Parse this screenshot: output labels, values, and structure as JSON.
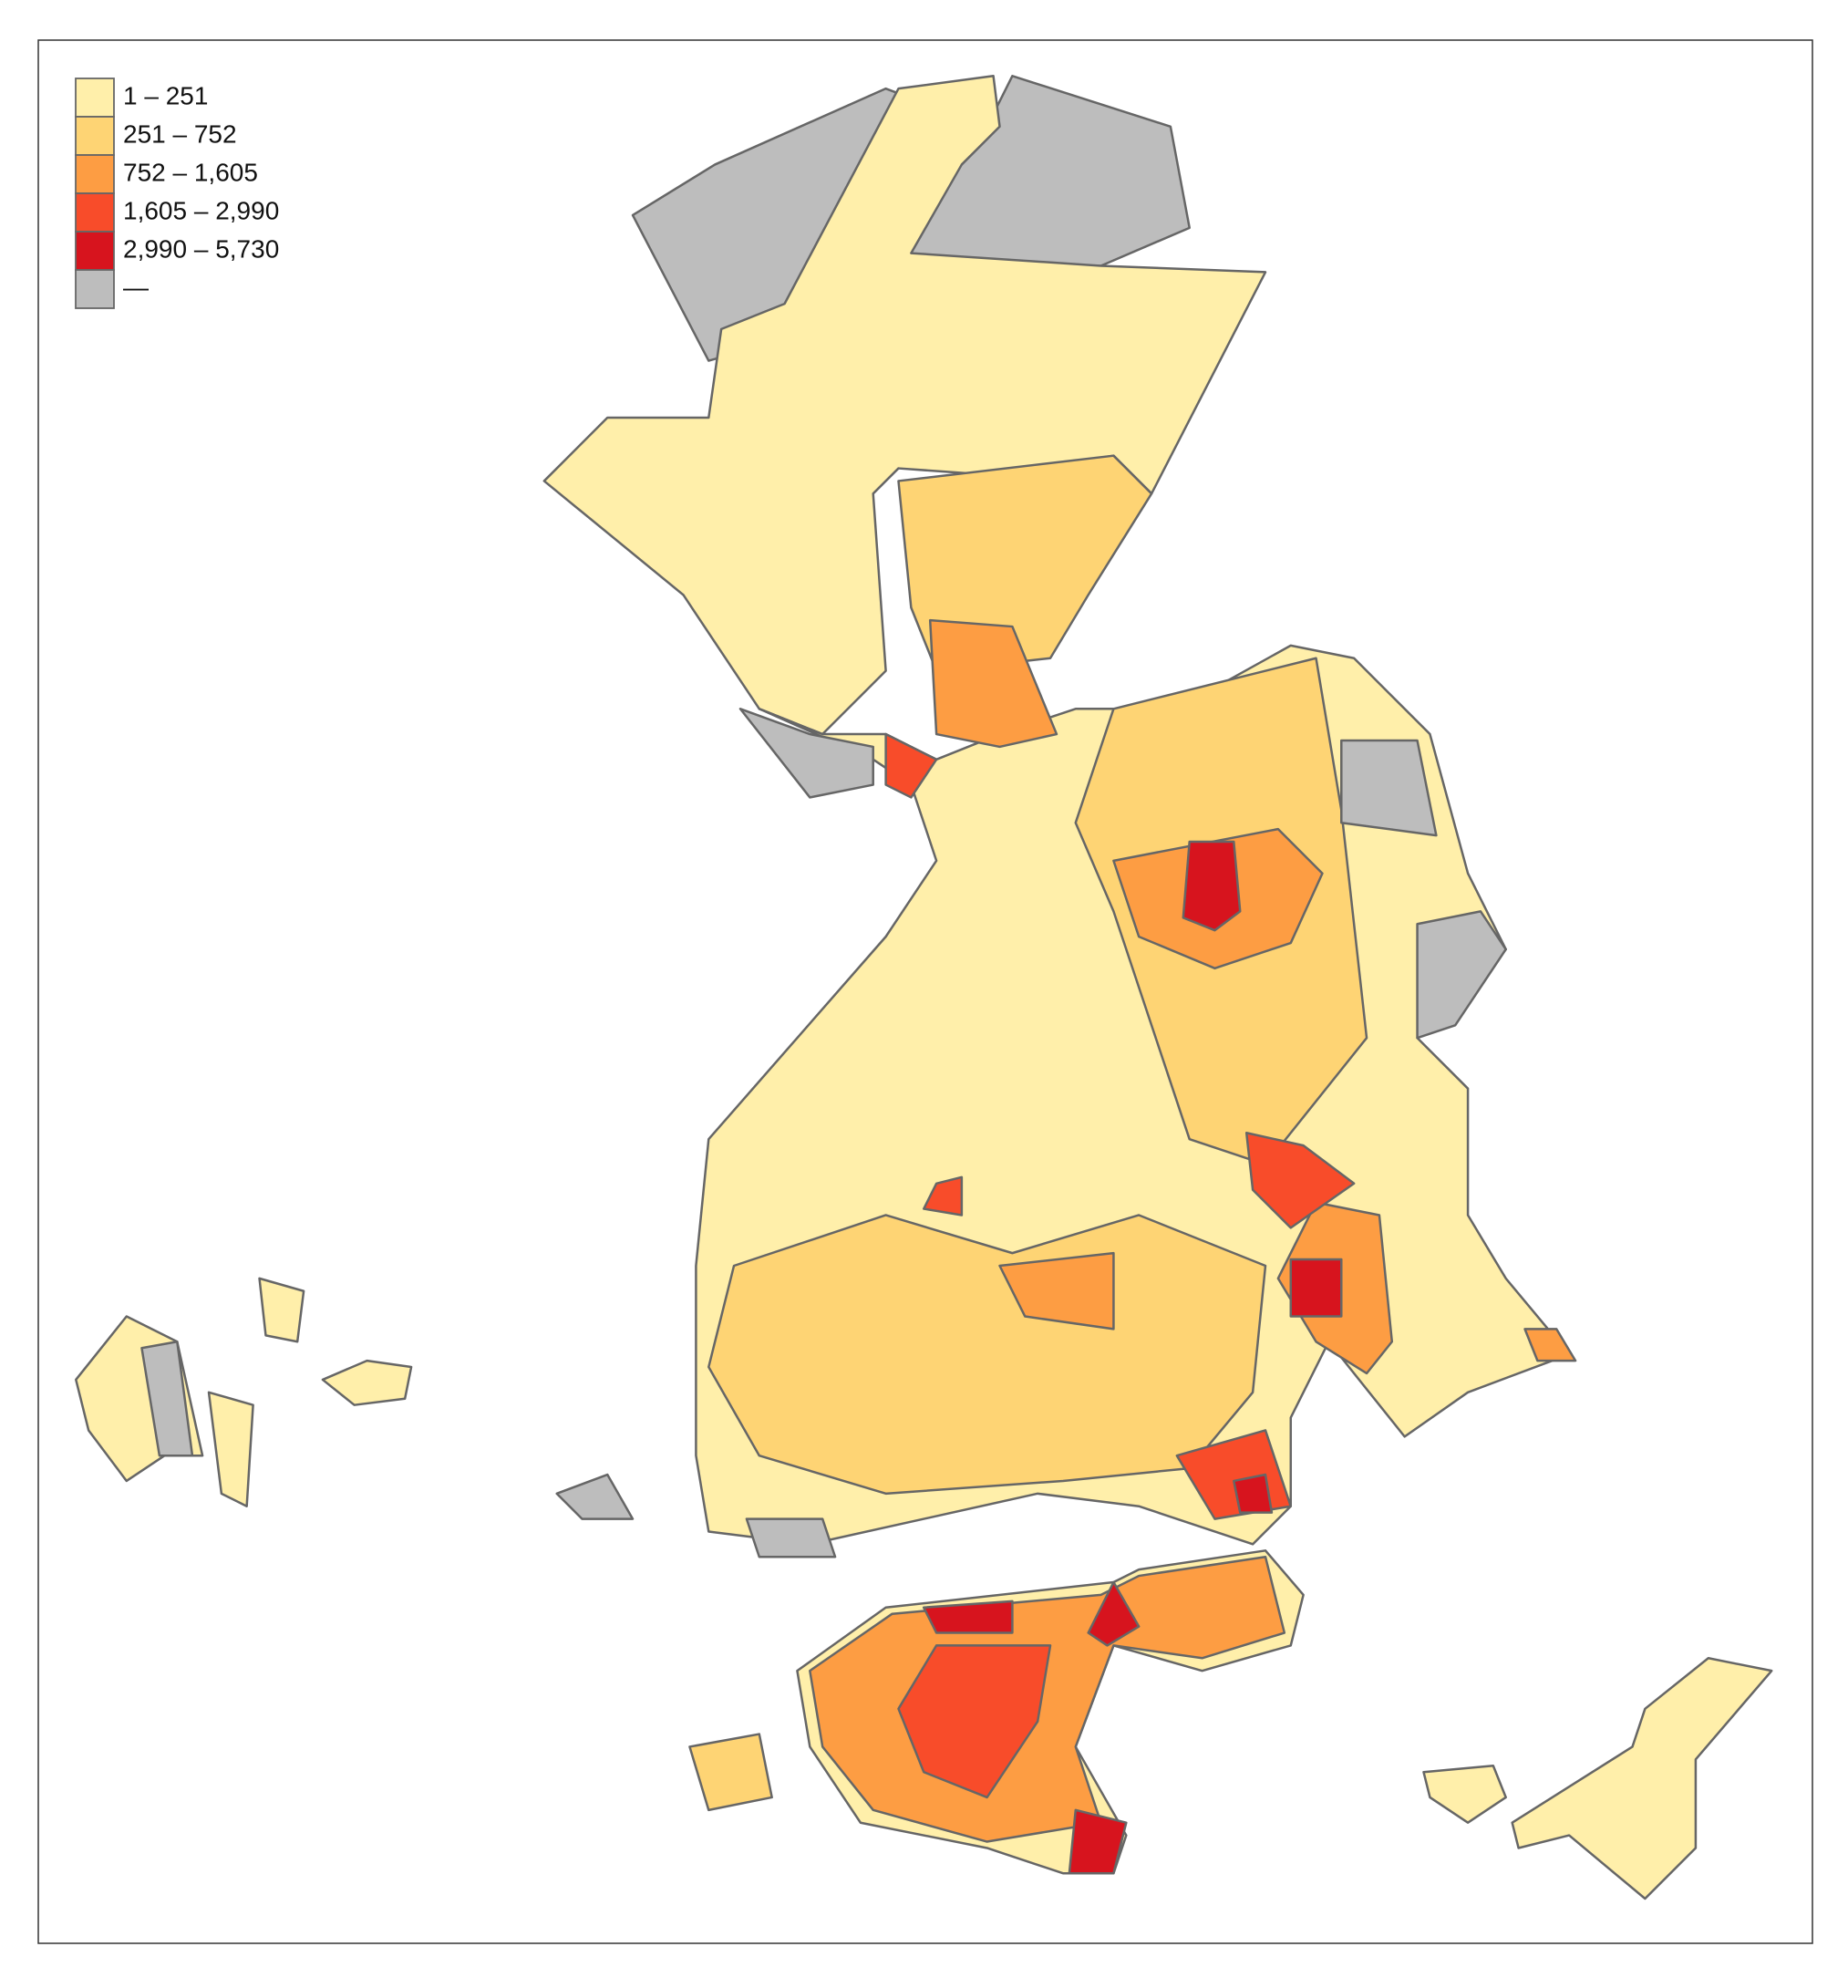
{
  "legend": {
    "classes": [
      {
        "label": "1 – 251",
        "color": "#ffefaa"
      },
      {
        "label": "251 – 752",
        "color": "#fed474"
      },
      {
        "label": "752 – 1,605",
        "color": "#fd9d43"
      },
      {
        "label": "1,605 – 2,990",
        "color": "#f84c2a"
      },
      {
        "label": "2,990 – 5,730",
        "color": "#d7141e"
      },
      {
        "label": "—",
        "color": "#bdbdbd"
      }
    ]
  }
}
